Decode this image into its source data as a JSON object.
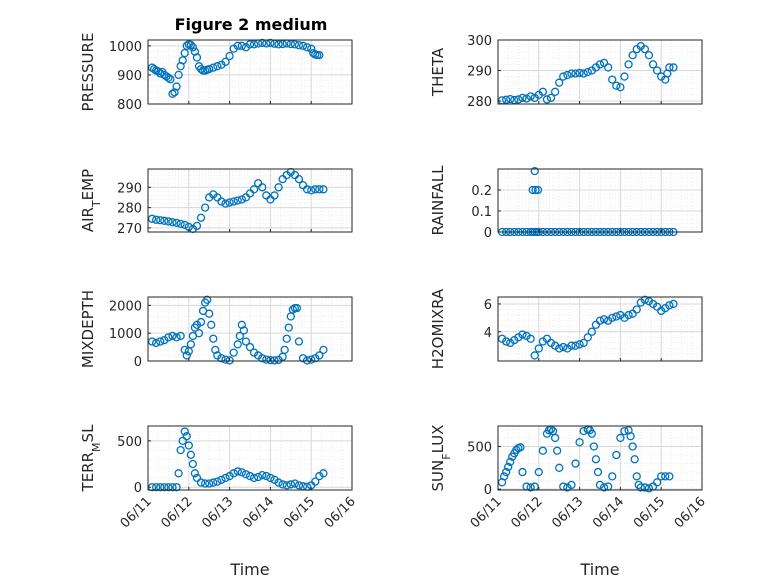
{
  "figure": {
    "title": "Figure 2 medium"
  },
  "colors": {
    "marker": "#0072BD",
    "axes": "#262626",
    "grid": "#d9d9d9",
    "minorgrid": "#ebebeb"
  },
  "chart_data": [
    {
      "type": "scatter",
      "ylabel": "PRESSURE",
      "ylabel_parts": [
        {
          "t": "PRESSURE"
        }
      ],
      "xlim": [
        0,
        5
      ],
      "ylim": [
        800,
        1020
      ],
      "yticks": [
        800,
        900,
        1000
      ],
      "ytick_labels": [
        "800",
        "900",
        "1000"
      ],
      "xticks": [],
      "grid": true,
      "x": [
        0.1,
        0.15,
        0.2,
        0.25,
        0.3,
        0.35,
        0.4,
        0.45,
        0.5,
        0.55,
        0.6,
        0.65,
        0.7,
        0.75,
        0.8,
        0.85,
        0.9,
        0.95,
        1.0,
        1.05,
        1.1,
        1.15,
        1.2,
        1.25,
        1.3,
        1.35,
        1.4,
        1.45,
        1.5,
        1.6,
        1.7,
        1.8,
        1.9,
        2.0,
        2.1,
        2.2,
        2.3,
        2.4,
        2.5,
        2.6,
        2.7,
        2.8,
        2.9,
        3.0,
        3.1,
        3.2,
        3.3,
        3.4,
        3.5,
        3.6,
        3.7,
        3.8,
        3.9,
        4.0,
        4.05,
        4.1,
        4.15,
        4.2
      ],
      "y": [
        925,
        920,
        915,
        912,
        905,
        910,
        900,
        895,
        890,
        885,
        835,
        840,
        860,
        900,
        930,
        950,
        975,
        1000,
        1005,
        1003,
        995,
        980,
        960,
        930,
        920,
        915,
        915,
        918,
        920,
        925,
        930,
        935,
        945,
        965,
        990,
        1000,
        1000,
        995,
        1005,
        1005,
        1008,
        1010,
        1008,
        1010,
        1007,
        1005,
        1006,
        1008,
        1006,
        1005,
        1002,
        1000,
        995,
        990,
        975,
        970,
        968,
        968
      ]
    },
    {
      "type": "scatter",
      "ylabel": "THETA",
      "ylabel_parts": [
        {
          "t": "THETA"
        }
      ],
      "xlim": [
        0,
        5
      ],
      "ylim": [
        279,
        300
      ],
      "yticks": [
        280,
        290,
        300
      ],
      "ytick_labels": [
        "280",
        "290",
        "300"
      ],
      "xticks": [],
      "grid": true,
      "x": [
        0.1,
        0.2,
        0.3,
        0.4,
        0.5,
        0.6,
        0.7,
        0.8,
        0.9,
        1.0,
        1.1,
        1.2,
        1.3,
        1.4,
        1.5,
        1.6,
        1.7,
        1.8,
        1.9,
        2.0,
        2.1,
        2.2,
        2.3,
        2.4,
        2.5,
        2.6,
        2.7,
        2.8,
        2.9,
        3.0,
        3.1,
        3.2,
        3.3,
        3.4,
        3.5,
        3.6,
        3.7,
        3.8,
        3.9,
        4.0,
        4.1,
        4.15,
        4.2,
        4.3
      ],
      "y": [
        280.2,
        280.4,
        280.6,
        280.3,
        280.5,
        281,
        280.8,
        281.5,
        281,
        282,
        283,
        280.5,
        281,
        283,
        286,
        288,
        288.5,
        289,
        289,
        289.2,
        289,
        289.5,
        290,
        291,
        292,
        292.5,
        291,
        287,
        285,
        284.5,
        288,
        292,
        295,
        297,
        298,
        297,
        295,
        292,
        290,
        288,
        287,
        289,
        291,
        291
      ]
    },
    {
      "type": "scatter",
      "ylabel": "AIR_TEMP",
      "ylabel_parts": [
        {
          "t": "AIR"
        },
        {
          "t": "T",
          "sub": true
        },
        {
          "t": "EMP"
        }
      ],
      "xlim": [
        0,
        5
      ],
      "ylim": [
        268,
        299
      ],
      "yticks": [
        270,
        280,
        290
      ],
      "ytick_labels": [
        "270",
        "280",
        "290"
      ],
      "xticks": [],
      "grid": true,
      "x": [
        0.1,
        0.2,
        0.3,
        0.4,
        0.5,
        0.6,
        0.7,
        0.8,
        0.9,
        1.0,
        1.1,
        1.2,
        1.3,
        1.4,
        1.5,
        1.6,
        1.7,
        1.8,
        1.9,
        2.0,
        2.1,
        2.2,
        2.3,
        2.4,
        2.5,
        2.6,
        2.7,
        2.8,
        2.9,
        3.0,
        3.1,
        3.2,
        3.3,
        3.4,
        3.5,
        3.6,
        3.7,
        3.8,
        3.9,
        4.0,
        4.1,
        4.2,
        4.3
      ],
      "y": [
        274.5,
        274,
        273.8,
        273.5,
        273.2,
        272.8,
        272.5,
        272,
        271.5,
        270.5,
        269.5,
        271,
        275,
        280,
        285,
        286.5,
        285,
        283,
        282,
        282.5,
        283,
        283.5,
        284,
        285,
        287,
        289,
        292,
        290,
        286,
        284,
        286,
        290,
        294,
        296,
        297.5,
        296,
        294,
        291,
        289,
        288.5,
        289,
        289,
        289
      ]
    },
    {
      "type": "scatter",
      "ylabel": "RAINFALL",
      "ylabel_parts": [
        {
          "t": "RAINFALL"
        }
      ],
      "xlim": [
        0,
        5
      ],
      "ylim": [
        0,
        0.3
      ],
      "yticks": [
        0,
        0.1,
        0.2
      ],
      "ytick_labels": [
        "0",
        "0.1",
        "0.2"
      ],
      "xticks": [],
      "grid": true,
      "x": [
        0.1,
        0.2,
        0.3,
        0.4,
        0.5,
        0.6,
        0.7,
        0.8,
        0.85,
        0.9,
        0.95,
        1.0,
        1.1,
        1.2,
        1.3,
        1.4,
        1.5,
        1.6,
        1.7,
        1.8,
        1.9,
        2.0,
        2.1,
        2.2,
        2.3,
        2.4,
        2.5,
        2.6,
        2.7,
        2.8,
        2.9,
        3.0,
        3.1,
        3.2,
        3.3,
        3.4,
        3.5,
        3.6,
        3.7,
        3.8,
        3.9,
        4.0,
        4.1,
        4.2,
        4.3,
        0.85,
        0.92,
        0.98,
        0.9
      ],
      "y": [
        0,
        0,
        0,
        0,
        0,
        0,
        0,
        0,
        0,
        0,
        0,
        0,
        0,
        0,
        0,
        0,
        0,
        0,
        0,
        0,
        0,
        0,
        0,
        0,
        0,
        0,
        0,
        0,
        0,
        0,
        0,
        0,
        0,
        0,
        0,
        0,
        0,
        0,
        0,
        0,
        0,
        0,
        0,
        0,
        0,
        0.2,
        0.2,
        0.2,
        0.29
      ]
    },
    {
      "type": "scatter",
      "ylabel": "MIXDEPTH",
      "ylabel_parts": [
        {
          "t": "MIXDEPTH"
        }
      ],
      "xlim": [
        0,
        5
      ],
      "ylim": [
        0,
        2300
      ],
      "yticks": [
        0,
        1000,
        2000
      ],
      "ytick_labels": [
        "0",
        "1000",
        "2000"
      ],
      "xticks": [],
      "grid": true,
      "x": [
        0.1,
        0.2,
        0.3,
        0.4,
        0.5,
        0.6,
        0.7,
        0.8,
        0.9,
        0.95,
        1.0,
        1.05,
        1.1,
        1.15,
        1.2,
        1.25,
        1.3,
        1.35,
        1.4,
        1.45,
        1.5,
        1.55,
        1.6,
        1.65,
        1.7,
        1.8,
        1.9,
        2.0,
        2.1,
        2.2,
        2.25,
        2.3,
        2.35,
        2.4,
        2.5,
        2.6,
        2.7,
        2.8,
        2.9,
        3.0,
        3.1,
        3.2,
        3.3,
        3.35,
        3.4,
        3.45,
        3.5,
        3.55,
        3.6,
        3.65,
        3.7,
        3.8,
        3.9,
        4.0,
        4.1,
        4.2,
        4.3
      ],
      "y": [
        700,
        650,
        700,
        750,
        850,
        900,
        850,
        900,
        400,
        200,
        350,
        600,
        900,
        1200,
        1300,
        1000,
        1400,
        1800,
        2100,
        2200,
        1700,
        1300,
        800,
        400,
        200,
        100,
        50,
        20,
        300,
        600,
        900,
        1300,
        1100,
        700,
        500,
        300,
        200,
        100,
        50,
        30,
        20,
        40,
        150,
        400,
        800,
        1200,
        1600,
        1850,
        1900,
        1900,
        700,
        100,
        20,
        50,
        100,
        200,
        400
      ]
    },
    {
      "type": "scatter",
      "ylabel": "H2OMIXRA",
      "ylabel_parts": [
        {
          "t": "H2OMIXRA"
        }
      ],
      "xlim": [
        0,
        5
      ],
      "ylim": [
        1.9,
        6.5
      ],
      "yticks": [
        4,
        6
      ],
      "ytick_labels": [
        "4",
        "6"
      ],
      "xticks": [],
      "grid": true,
      "x": [
        0.1,
        0.2,
        0.3,
        0.4,
        0.5,
        0.6,
        0.7,
        0.8,
        0.9,
        1.0,
        1.1,
        1.2,
        1.3,
        1.4,
        1.5,
        1.6,
        1.7,
        1.8,
        1.9,
        2.0,
        2.1,
        2.2,
        2.3,
        2.4,
        2.5,
        2.6,
        2.7,
        2.8,
        2.9,
        3.0,
        3.1,
        3.2,
        3.3,
        3.4,
        3.5,
        3.6,
        3.7,
        3.8,
        3.9,
        4.0,
        4.1,
        4.2,
        4.3
      ],
      "y": [
        3.5,
        3.3,
        3.2,
        3.4,
        3.6,
        3.8,
        3.7,
        3.5,
        2.3,
        2.8,
        3.3,
        3.5,
        3.2,
        3.0,
        2.8,
        2.9,
        2.8,
        3.0,
        3.0,
        3.1,
        3.2,
        3.6,
        4.0,
        4.5,
        4.8,
        4.9,
        4.8,
        5.0,
        5.1,
        5.2,
        5.0,
        5.2,
        5.3,
        5.6,
        6.1,
        6.3,
        6.2,
        6.0,
        5.8,
        5.5,
        5.7,
        5.9,
        6.0
      ]
    },
    {
      "type": "scatter",
      "ylabel": "TERR_MSL",
      "ylabel_parts": [
        {
          "t": "TERR"
        },
        {
          "t": "M",
          "sub": true
        },
        {
          "t": "SL"
        }
      ],
      "xlim": [
        0,
        5
      ],
      "ylim": [
        -30,
        660
      ],
      "yticks": [
        0,
        500
      ],
      "ytick_labels": [
        "0",
        "500"
      ],
      "xticks": [
        0,
        1,
        2,
        3,
        4,
        5
      ],
      "xtick_labels": [
        "06/11",
        "06/12",
        "06/13",
        "06/14",
        "06/15",
        "06/16"
      ],
      "xlabel": "Time",
      "grid": true,
      "x": [
        0.1,
        0.2,
        0.3,
        0.4,
        0.5,
        0.6,
        0.7,
        0.75,
        0.8,
        0.85,
        0.9,
        0.95,
        1.0,
        1.05,
        1.1,
        1.15,
        1.2,
        1.3,
        1.4,
        1.5,
        1.6,
        1.7,
        1.8,
        1.9,
        2.0,
        2.1,
        2.2,
        2.3,
        2.4,
        2.5,
        2.6,
        2.7,
        2.8,
        2.9,
        3.0,
        3.1,
        3.2,
        3.3,
        3.4,
        3.5,
        3.6,
        3.7,
        3.8,
        3.9,
        4.0,
        4.1,
        4.2,
        4.3
      ],
      "y": [
        0,
        0,
        0,
        0,
        0,
        0,
        0,
        150,
        400,
        500,
        600,
        550,
        450,
        350,
        250,
        150,
        100,
        50,
        40,
        40,
        50,
        60,
        80,
        100,
        120,
        150,
        170,
        160,
        140,
        120,
        100,
        110,
        130,
        120,
        100,
        80,
        50,
        30,
        20,
        30,
        40,
        20,
        10,
        5,
        20,
        60,
        120,
        150
      ]
    },
    {
      "type": "scatter",
      "ylabel": "SUN_FLUX",
      "ylabel_parts": [
        {
          "t": "SUN"
        },
        {
          "t": "F",
          "sub": true
        },
        {
          "t": "LUX"
        }
      ],
      "xlim": [
        0,
        5
      ],
      "ylim": [
        -10,
        740
      ],
      "yticks": [
        0,
        500
      ],
      "ytick_labels": [
        "0",
        "500"
      ],
      "xticks": [
        0,
        1,
        2,
        3,
        4,
        5
      ],
      "xtick_labels": [
        "06/11",
        "06/12",
        "06/13",
        "06/14",
        "06/15",
        "06/16"
      ],
      "xlabel": "Time",
      "grid": true,
      "x": [
        0.1,
        0.15,
        0.2,
        0.25,
        0.3,
        0.35,
        0.4,
        0.45,
        0.5,
        0.55,
        0.6,
        0.7,
        0.8,
        0.9,
        1.0,
        1.1,
        1.2,
        1.25,
        1.3,
        1.35,
        1.4,
        1.45,
        1.5,
        1.6,
        1.7,
        1.8,
        1.9,
        2.0,
        2.1,
        2.2,
        2.25,
        2.3,
        2.35,
        2.4,
        2.45,
        2.5,
        2.6,
        2.7,
        2.8,
        2.9,
        3.0,
        3.1,
        3.2,
        3.25,
        3.3,
        3.35,
        3.4,
        3.45,
        3.5,
        3.6,
        3.7,
        3.8,
        3.9,
        4.0,
        4.1,
        4.2
      ],
      "y": [
        80,
        150,
        200,
        260,
        320,
        380,
        420,
        460,
        480,
        490,
        200,
        30,
        20,
        30,
        200,
        450,
        650,
        690,
        700,
        680,
        600,
        450,
        250,
        30,
        20,
        50,
        300,
        550,
        680,
        700,
        690,
        650,
        500,
        350,
        200,
        50,
        20,
        30,
        150,
        400,
        600,
        680,
        690,
        620,
        500,
        350,
        150,
        50,
        20,
        20,
        10,
        30,
        80,
        150,
        150,
        150
      ]
    }
  ]
}
